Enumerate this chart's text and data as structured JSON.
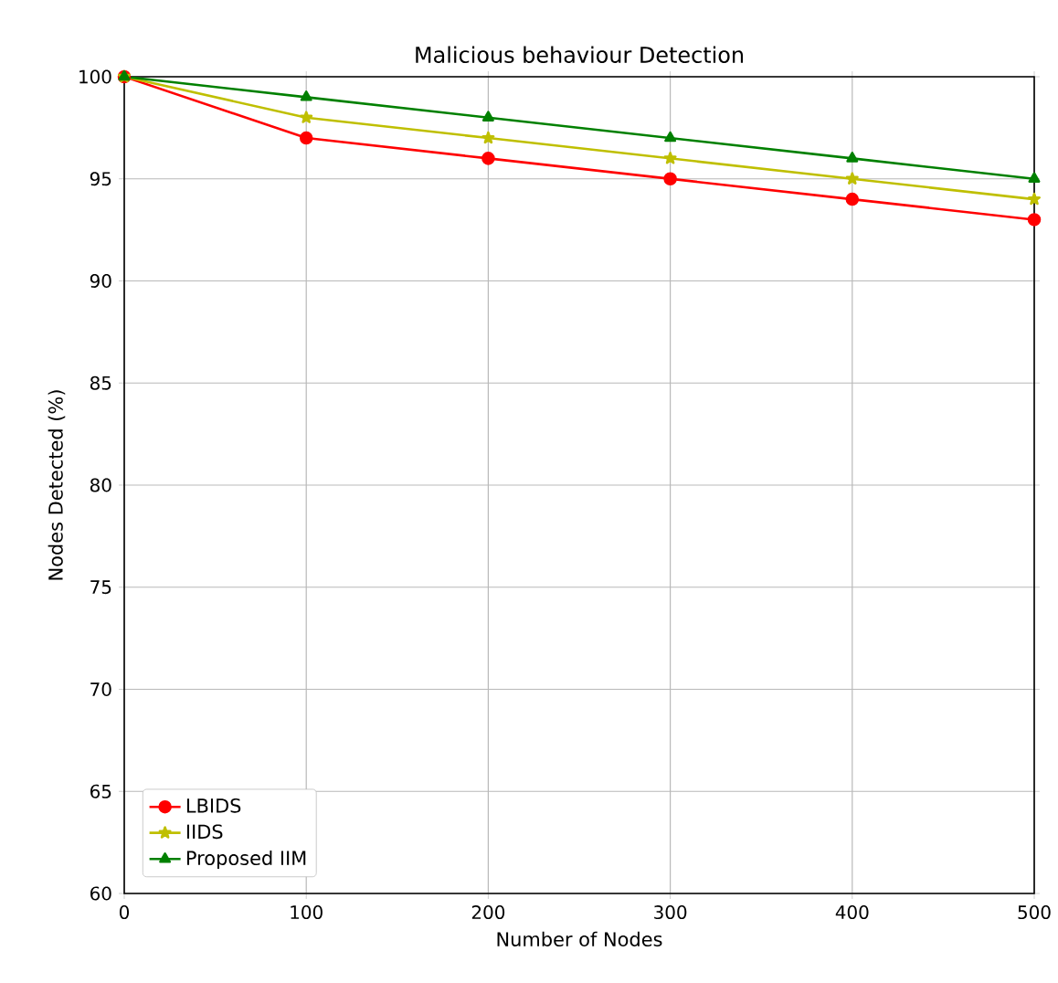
{
  "chart_data": {
    "type": "line",
    "title": "Malicious behaviour Detection",
    "xlabel": "Number of Nodes",
    "ylabel": "Nodes Detected (%)",
    "x": [
      0,
      100,
      200,
      300,
      400,
      500
    ],
    "series": [
      {
        "name": "LBIDS",
        "color": "#ff0000",
        "marker": "circle",
        "values": [
          100,
          97,
          96,
          95,
          94,
          93
        ]
      },
      {
        "name": "IIDS",
        "color": "#bfbf00",
        "marker": "star",
        "values": [
          100,
          98,
          97,
          96,
          95,
          94
        ]
      },
      {
        "name": "Proposed IIM",
        "color": "#008000",
        "marker": "triangle",
        "values": [
          100,
          99,
          98,
          97,
          96,
          95
        ]
      }
    ],
    "xlim": [
      0,
      500
    ],
    "xticks": [
      0,
      100,
      200,
      300,
      400,
      500
    ],
    "ylim": [
      60,
      100
    ],
    "yticks": [
      60,
      65,
      70,
      75,
      80,
      85,
      90,
      95,
      100
    ],
    "grid": true,
    "legend": "bottom left",
    "line_style": "solid"
  }
}
